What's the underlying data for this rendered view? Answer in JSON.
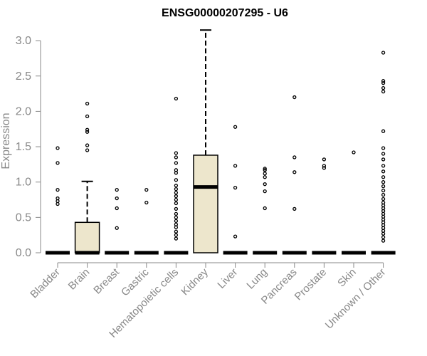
{
  "chart_data": {
    "type": "box",
    "title": "ENSG00000207295 - U6",
    "xlabel": "",
    "ylabel": "Expression",
    "ylim": [
      0,
      3.2
    ],
    "yticks": [
      "0.0",
      "0.5",
      "1.0",
      "1.5",
      "2.0",
      "2.5",
      "3.0"
    ],
    "box_fill": "#ede6cc",
    "categories": [
      "Bladder",
      "Brain",
      "Breast",
      "Gastric",
      "Hematopoietic cells",
      "Kidney",
      "Liver",
      "Lung",
      "Pancreas",
      "Prostate",
      "Skin",
      "Unknown / Other"
    ],
    "boxes": [
      {
        "min": 0,
        "q1": 0,
        "median": 0,
        "q3": 0,
        "max": 0,
        "outliers": [
          0.69,
          0.73,
          0.77,
          0.89,
          1.27,
          1.48
        ]
      },
      {
        "min": 0,
        "q1": 0,
        "median": 0,
        "q3": 0.43,
        "max": 1.01,
        "outliers": [
          1.45,
          1.52,
          1.71,
          1.74,
          1.93,
          2.11
        ]
      },
      {
        "min": 0,
        "q1": 0,
        "median": 0,
        "q3": 0,
        "max": 0,
        "outliers": [
          0.35,
          0.63,
          0.77,
          0.89
        ]
      },
      {
        "min": 0,
        "q1": 0,
        "median": 0,
        "q3": 0,
        "max": 0,
        "outliers": [
          0.71,
          0.89
        ]
      },
      {
        "min": 0,
        "q1": 0,
        "median": 0,
        "q3": 0,
        "max": 0,
        "outliers": [
          0.2,
          0.25,
          0.3,
          0.36,
          0.4,
          0.45,
          0.5,
          0.55,
          0.62,
          0.7,
          0.75,
          0.8,
          0.85,
          0.9,
          0.95,
          1.03,
          1.13,
          1.17,
          1.27,
          1.35,
          1.41,
          2.18
        ]
      },
      {
        "min": 0,
        "q1": 0,
        "median": 0.93,
        "q3": 1.38,
        "max": 3.15,
        "outliers": []
      },
      {
        "min": 0,
        "q1": 0,
        "median": 0,
        "q3": 0,
        "max": 0,
        "outliers": [
          0.23,
          0.92,
          1.23,
          1.78
        ]
      },
      {
        "min": 0,
        "q1": 0,
        "median": 0,
        "q3": 0,
        "max": 0,
        "outliers": [
          0.63,
          0.87,
          0.97,
          1.07,
          1.12,
          1.17,
          1.19
        ]
      },
      {
        "min": 0,
        "q1": 0,
        "median": 0,
        "q3": 0,
        "max": 0,
        "outliers": [
          0.62,
          1.14,
          1.35,
          2.2
        ]
      },
      {
        "min": 0,
        "q1": 0,
        "median": 0,
        "q3": 0,
        "max": 0,
        "outliers": [
          1.2,
          1.23,
          1.32
        ]
      },
      {
        "min": 0,
        "q1": 0,
        "median": 0,
        "q3": 0,
        "max": 0,
        "outliers": [
          1.42
        ]
      },
      {
        "min": 0,
        "q1": 0,
        "median": 0,
        "q3": 0,
        "max": 0,
        "outliers": [
          0.17,
          0.22,
          0.27,
          0.31,
          0.35,
          0.39,
          0.43,
          0.47,
          0.51,
          0.55,
          0.59,
          0.63,
          0.67,
          0.71,
          0.76,
          0.82,
          0.88,
          0.94,
          1.0,
          1.07,
          1.15,
          1.23,
          1.32,
          1.4,
          1.48,
          1.72,
          2.28,
          2.33,
          2.4,
          2.43,
          2.83
        ]
      }
    ]
  }
}
